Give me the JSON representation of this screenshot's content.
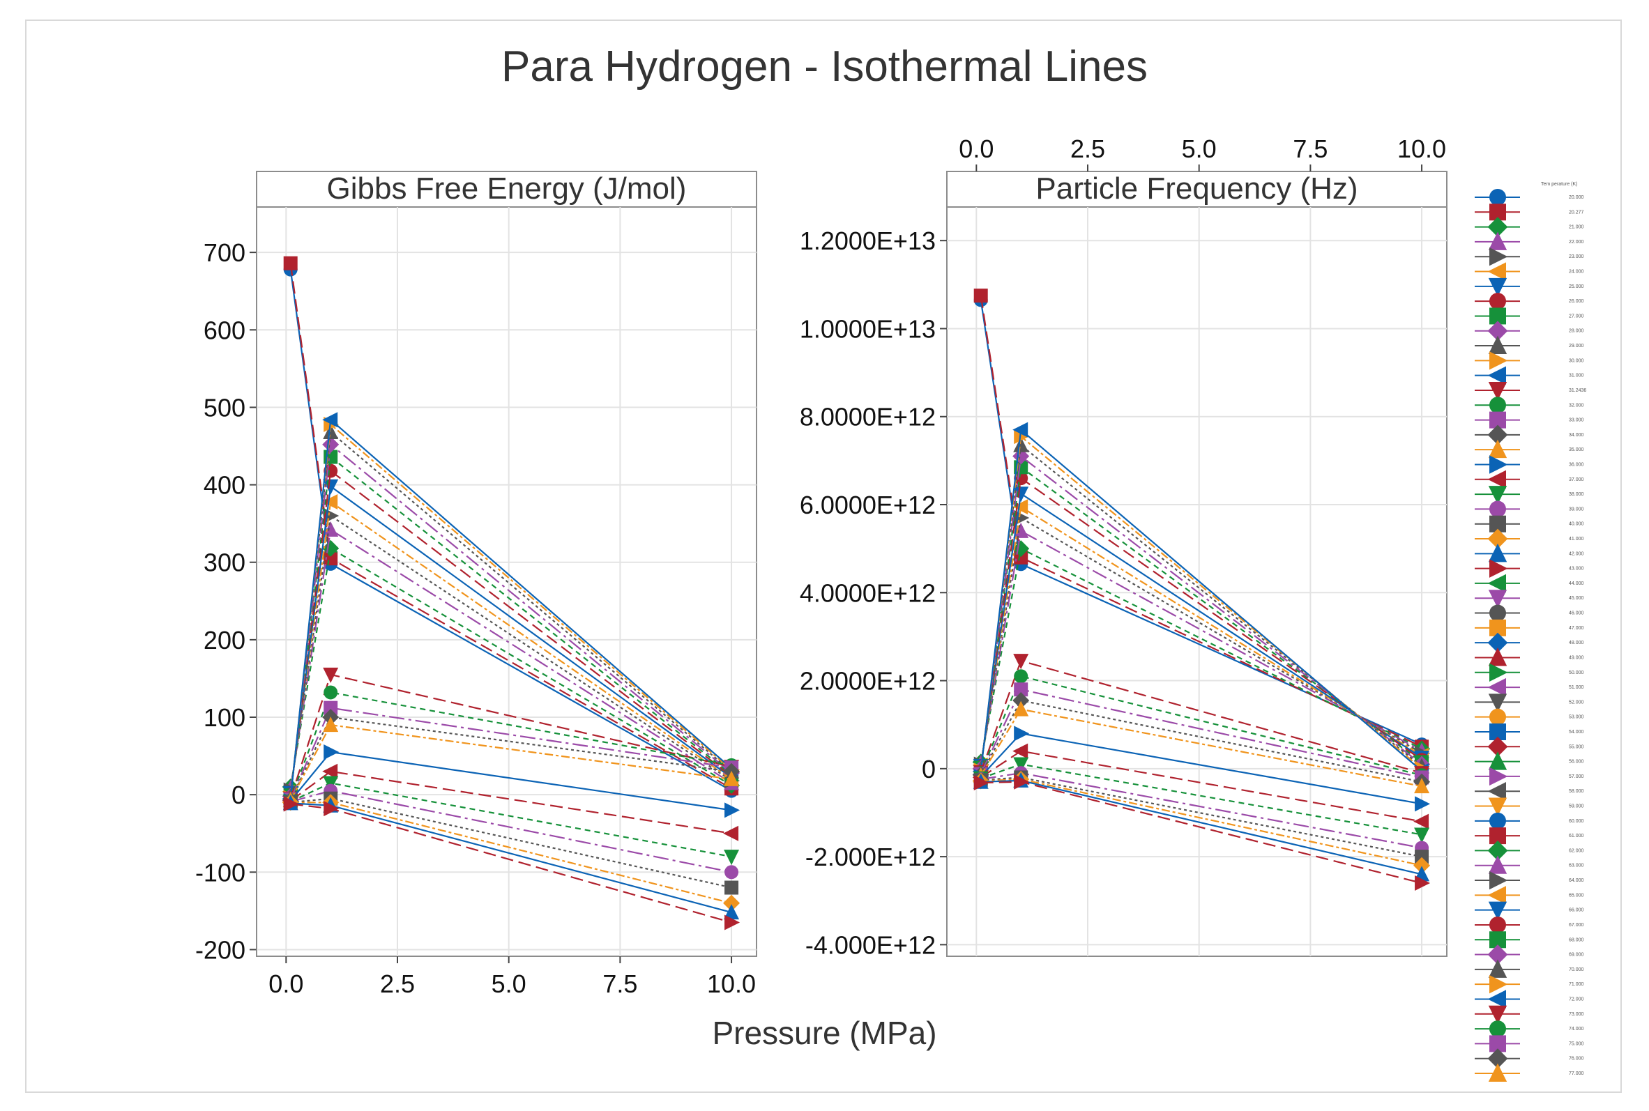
{
  "chart_data": {
    "type": "line",
    "title": "Para Hydrogen - Isothermal Lines",
    "xlabel": "Pressure (MPa)",
    "legend_title": "Tem perature (K)",
    "legend_placement": "right",
    "grid": true,
    "x_ticks": [
      "0.0",
      "2.5",
      "5.0",
      "7.5",
      "10.0"
    ],
    "xlim": [
      -0.6,
      10.5
    ],
    "colors": [
      "#0b63b5",
      "#b0222e",
      "#16913a",
      "#9b4aa8",
      "#555555",
      "#f0941d"
    ],
    "panels": [
      {
        "title": "Gibbs Free Energy (J/mol)",
        "ylim": [
          -205,
          755
        ],
        "y_ticks": [
          "-200",
          "-100",
          "0",
          "100",
          "200",
          "300",
          "400",
          "500",
          "600",
          "700"
        ],
        "y_tick_values": [
          -200,
          -100,
          0,
          100,
          200,
          300,
          400,
          500,
          600,
          700
        ],
        "x_axis_position": "bottom",
        "series": [
          {
            "name": "20.000",
            "x": [
              0.1,
              1,
              10
            ],
            "y": [
              678,
              298,
              5
            ]
          },
          {
            "name": "20.277",
            "x": [
              0.1,
              1,
              10
            ],
            "y": [
              686,
              305,
              8
            ]
          },
          {
            "name": "21.000",
            "x": [
              0.1,
              1,
              10
            ],
            "y": [
              10,
              318,
              12
            ]
          },
          {
            "name": "22.000",
            "x": [
              0.1,
              1,
              10
            ],
            "y": [
              8,
              342,
              15
            ]
          },
          {
            "name": "23.000",
            "x": [
              0.1,
              1,
              10
            ],
            "y": [
              6,
              360,
              18
            ]
          },
          {
            "name": "24.000",
            "x": [
              0.1,
              1,
              10
            ],
            "y": [
              4,
              378,
              20
            ]
          },
          {
            "name": "25.000",
            "x": [
              0.1,
              1,
              10
            ],
            "y": [
              2,
              398,
              22
            ]
          },
          {
            "name": "26.000",
            "x": [
              0.1,
              1,
              10
            ],
            "y": [
              0,
              418,
              24
            ]
          },
          {
            "name": "27.000",
            "x": [
              0.1,
              1,
              10
            ],
            "y": [
              -1,
              436,
              26
            ]
          },
          {
            "name": "28.000",
            "x": [
              0.1,
              1,
              10
            ],
            "y": [
              -2,
              452,
              28
            ]
          },
          {
            "name": "29.000",
            "x": [
              0.1,
              1,
              10
            ],
            "y": [
              -3,
              468,
              30
            ]
          },
          {
            "name": "30.000",
            "x": [
              0.1,
              1,
              10
            ],
            "y": [
              -4,
              478,
              32
            ]
          },
          {
            "name": "31.000",
            "x": [
              0.1,
              1,
              10
            ],
            "y": [
              -5,
              484,
              34
            ]
          },
          {
            "name": "31.2436",
            "x": [
              0.1,
              1,
              10
            ],
            "y": [
              -5,
              155,
              36
            ]
          },
          {
            "name": "32.000",
            "x": [
              0.1,
              1,
              10
            ],
            "y": [
              -6,
              132,
              38
            ]
          },
          {
            "name": "33.000",
            "x": [
              0.1,
              1,
              10
            ],
            "y": [
              -6,
              112,
              35
            ]
          },
          {
            "name": "34.000",
            "x": [
              0.1,
              1,
              10
            ],
            "y": [
              -7,
              100,
              30
            ]
          },
          {
            "name": "35.000",
            "x": [
              0.1,
              1,
              10
            ],
            "y": [
              -7,
              90,
              20
            ]
          },
          {
            "name": "40.000",
            "x": [
              0.1,
              1,
              10
            ],
            "y": [
              -8,
              55,
              -20
            ]
          },
          {
            "name": "45.000",
            "x": [
              0.1,
              1,
              10
            ],
            "y": [
              -8,
              30,
              -50
            ]
          },
          {
            "name": "50.000",
            "x": [
              0.1,
              1,
              10
            ],
            "y": [
              -9,
              15,
              -80
            ]
          },
          {
            "name": "55.000",
            "x": [
              0.1,
              1,
              10
            ],
            "y": [
              -9,
              5,
              -100
            ]
          },
          {
            "name": "60.000",
            "x": [
              0.1,
              1,
              10
            ],
            "y": [
              -10,
              -5,
              -120
            ]
          },
          {
            "name": "65.000",
            "x": [
              0.1,
              1,
              10
            ],
            "y": [
              -10,
              -10,
              -140
            ]
          },
          {
            "name": "70.000",
            "x": [
              0.1,
              1,
              10
            ],
            "y": [
              -11,
              -14,
              -152
            ]
          },
          {
            "name": "77.000",
            "x": [
              0.1,
              1,
              10
            ],
            "y": [
              -12,
              -18,
              -165
            ]
          }
        ]
      },
      {
        "title": "Particle Frequency (Hz)",
        "ylim": [
          -4200000000000.0,
          12700000000000.0
        ],
        "y_ticks": [
          "-4.000E+12",
          "-2.000E+12",
          "0",
          "2.0000E+12",
          "4.0000E+12",
          "6.0000E+12",
          "8.0000E+12",
          "1.0000E+13",
          "1.2000E+13"
        ],
        "y_tick_values": [
          -4000000000000.0,
          -2000000000000.0,
          0,
          2000000000000.0,
          4000000000000.0,
          6000000000000.0,
          8000000000000.0,
          10000000000000.0,
          12000000000000.0
        ],
        "x_axis_position": "top",
        "series": [
          {
            "name": "20.000",
            "x": [
              0.1,
              1,
              10
            ],
            "y": [
              10650000000000.0,
              4650000000000.0,
              550000000000.0
            ]
          },
          {
            "name": "20.277",
            "x": [
              0.1,
              1,
              10
            ],
            "y": [
              10750000000000.0,
              4800000000000.0,
              500000000000.0
            ]
          },
          {
            "name": "21.000",
            "x": [
              0.1,
              1,
              10
            ],
            "y": [
              150000000000.0,
              5000000000000.0,
              450000000000.0
            ]
          },
          {
            "name": "22.000",
            "x": [
              0.1,
              1,
              10
            ],
            "y": [
              120000000000.0,
              5400000000000.0,
              400000000000.0
            ]
          },
          {
            "name": "23.000",
            "x": [
              0.1,
              1,
              10
            ],
            "y": [
              100000000000.0,
              5700000000000.0,
              350000000000.0
            ]
          },
          {
            "name": "24.000",
            "x": [
              0.1,
              1,
              10
            ],
            "y": [
              80000000000.0,
              5950000000000.0,
              300000000000.0
            ]
          },
          {
            "name": "25.000",
            "x": [
              0.1,
              1,
              10
            ],
            "y": [
              60000000000.0,
              6250000000000.0,
              250000000000.0
            ]
          },
          {
            "name": "26.000",
            "x": [
              0.1,
              1,
              10
            ],
            "y": [
              40000000000.0,
              6600000000000.0,
              200000000000.0
            ]
          },
          {
            "name": "27.000",
            "x": [
              0.1,
              1,
              10
            ],
            "y": [
              20000000000.0,
              6850000000000.0,
              150000000000.0
            ]
          },
          {
            "name": "28.000",
            "x": [
              0.1,
              1,
              10
            ],
            "y": [
              0,
              7100000000000.0,
              100000000000.0
            ]
          },
          {
            "name": "29.000",
            "x": [
              0.1,
              1,
              10
            ],
            "y": [
              -20000000000.0,
              7350000000000.0,
              50000000000.0
            ]
          },
          {
            "name": "30.000",
            "x": [
              0.1,
              1,
              10
            ],
            "y": [
              -40000000000.0,
              7550000000000.0,
              0
            ]
          },
          {
            "name": "31.000",
            "x": [
              0.1,
              1,
              10
            ],
            "y": [
              -60000000000.0,
              7700000000000.0,
              -50000000000.0
            ]
          },
          {
            "name": "31.2436",
            "x": [
              0.1,
              1,
              10
            ],
            "y": [
              -80000000000.0,
              2450000000000.0,
              -100000000000.0
            ]
          },
          {
            "name": "32.000",
            "x": [
              0.1,
              1,
              10
            ],
            "y": [
              -100000000000.0,
              2100000000000.0,
              -150000000000.0
            ]
          },
          {
            "name": "33.000",
            "x": [
              0.1,
              1,
              10
            ],
            "y": [
              -120000000000.0,
              1800000000000.0,
              -200000000000.0
            ]
          },
          {
            "name": "34.000",
            "x": [
              0.1,
              1,
              10
            ],
            "y": [
              -140000000000.0,
              1550000000000.0,
              -300000000000.0
            ]
          },
          {
            "name": "35.000",
            "x": [
              0.1,
              1,
              10
            ],
            "y": [
              -160000000000.0,
              1350000000000.0,
              -400000000000.0
            ]
          },
          {
            "name": "40.000",
            "x": [
              0.1,
              1,
              10
            ],
            "y": [
              -180000000000.0,
              800000000000.0,
              -800000000000.0
            ]
          },
          {
            "name": "45.000",
            "x": [
              0.1,
              1,
              10
            ],
            "y": [
              -200000000000.0,
              400000000000.0,
              -1200000000000.0
            ]
          },
          {
            "name": "50.000",
            "x": [
              0.1,
              1,
              10
            ],
            "y": [
              -220000000000.0,
              100000000000.0,
              -1500000000000.0
            ]
          },
          {
            "name": "55.000",
            "x": [
              0.1,
              1,
              10
            ],
            "y": [
              -240000000000.0,
              -100000000000.0,
              -1800000000000.0
            ]
          },
          {
            "name": "60.000",
            "x": [
              0.1,
              1,
              10
            ],
            "y": [
              -260000000000.0,
              -200000000000.0,
              -2000000000000.0
            ]
          },
          {
            "name": "65.000",
            "x": [
              0.1,
              1,
              10
            ],
            "y": [
              -280000000000.0,
              -240000000000.0,
              -2200000000000.0
            ]
          },
          {
            "name": "70.000",
            "x": [
              0.1,
              1,
              10
            ],
            "y": [
              -300000000000.0,
              -270000000000.0,
              -2400000000000.0
            ]
          },
          {
            "name": "77.000",
            "x": [
              0.1,
              1,
              10
            ],
            "y": [
              -320000000000.0,
              -300000000000.0,
              -2600000000000.0
            ]
          }
        ]
      }
    ],
    "legend_entries": [
      "20.000",
      "20.277",
      "21.000",
      "22.000",
      "23.000",
      "24.000",
      "25.000",
      "26.000",
      "27.000",
      "28.000",
      "29.000",
      "30.000",
      "31.000",
      "31.2436",
      "32.000",
      "33.000",
      "34.000",
      "35.000",
      "36.000",
      "37.000",
      "38.000",
      "39.000",
      "40.000",
      "41.000",
      "42.000",
      "43.000",
      "44.000",
      "45.000",
      "46.000",
      "47.000",
      "48.000",
      "49.000",
      "50.000",
      "51.000",
      "52.000",
      "53.000",
      "54.000",
      "55.000",
      "56.000",
      "57.000",
      "58.000",
      "59.000",
      "60.000",
      "61.000",
      "62.000",
      "63.000",
      "64.000",
      "65.000",
      "66.000",
      "67.000",
      "68.000",
      "69.000",
      "70.000",
      "71.000",
      "72.000",
      "73.000",
      "74.000",
      "75.000",
      "76.000",
      "77.000"
    ]
  }
}
